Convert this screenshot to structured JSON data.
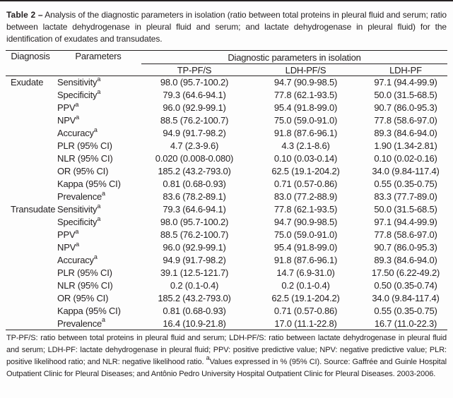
{
  "colors": {
    "text": "#231f20",
    "rule": "#262223",
    "background": "#fdfdfd"
  },
  "caption": {
    "label": "Table 2 –",
    "text": "Analysis of the diagnostic parameters in isolation (ratio between total proteins in pleural fluid and serum; ratio between lactate dehydrogenase in pleural fluid and serum; and lactate dehydrogenase in pleural fluid) for the identification of exudates and transudates."
  },
  "table": {
    "header": {
      "diagnosis": "Diagnosis",
      "parameters": "Parameters",
      "group": "Diagnostic parameters in isolation",
      "columns": [
        "TP-PF/S",
        "LDH-PF/S",
        "LDH-PF"
      ]
    },
    "sections": [
      {
        "diagnosis": "Exudate",
        "rows": [
          {
            "parameter": "Sensitivity",
            "note": "a",
            "values": [
              "98.0 (95.7-100.2)",
              "94.7 (90.9-98.5)",
              "97.1 (94.4-99.9)"
            ]
          },
          {
            "parameter": "Specificity",
            "note": "a",
            "values": [
              "79.3 (64.6-94.1)",
              "77.8 (62.1-93.5)",
              "50.0 (31.5-68.5)"
            ]
          },
          {
            "parameter": "PPV",
            "note": "a",
            "values": [
              "96.0 (92.9-99.1)",
              "95.4 (91.8-99.0)",
              "90.7 (86.0-95.3)"
            ]
          },
          {
            "parameter": "NPV",
            "note": "a",
            "values": [
              "88.5 (76.2-100.7)",
              "75.0 (59.0-91.0)",
              "77.8 (58.6-97.0)"
            ]
          },
          {
            "parameter": "Accuracy",
            "note": "a",
            "values": [
              "94.9 (91.7-98.2)",
              "91.8 (87.6-96.1)",
              "89.3 (84.6-94.0)"
            ]
          },
          {
            "parameter": "PLR (95% CI)",
            "note": "",
            "values": [
              "4.7 (2.3-9.6)",
              "4.3 (2.1-8.6)",
              "1.90 (1.34-2.81)"
            ]
          },
          {
            "parameter": "NLR (95% CI)",
            "note": "",
            "values": [
              "0.020 (0.008-0.080)",
              "0.10 (0.03-0.14)",
              "0.10 (0.02-0.16)"
            ]
          },
          {
            "parameter": "OR (95% CI)",
            "note": "",
            "values": [
              "185.2 (43.2-793.0)",
              "62.5 (19.1-204.2)",
              "34.0 (9.84-117.4)"
            ]
          },
          {
            "parameter": "Kappa (95% CI)",
            "note": "",
            "values": [
              "0.81 (0.68-0.93)",
              "0.71 (0.57-0.86)",
              "0.55 (0.35-0.75)"
            ]
          },
          {
            "parameter": "Prevalence",
            "note": "a",
            "values": [
              "83.6 (78.2-89.1)",
              "83.0 (77.2-88.9)",
              "83.3 (77.7-89.0)"
            ]
          }
        ]
      },
      {
        "diagnosis": "Transudate",
        "rows": [
          {
            "parameter": "Sensitivity",
            "note": "a",
            "values": [
              "79.3 (64.6-94.1)",
              "77.8 (62.1-93.5)",
              "50.0 (31.5-68.5)"
            ]
          },
          {
            "parameter": "Specificity",
            "note": "a",
            "values": [
              "98.0 (95.7-100.2)",
              "94.7 (90.9-98.5)",
              "97.1 (94.4-99.9)"
            ]
          },
          {
            "parameter": "PPV",
            "note": "a",
            "values": [
              "88.5 (76.2-100.7)",
              "75.0 (59.0-91.0)",
              "77.8 (58.6-97.0)"
            ]
          },
          {
            "parameter": "NPV",
            "note": "a",
            "values": [
              "96.0 (92.9-99.1)",
              "95.4 (91.8-99.0)",
              "90.7 (86.0-95.3)"
            ]
          },
          {
            "parameter": "Accuracy",
            "note": "a",
            "values": [
              "94.9 (91.7-98.2)",
              "91.8 (87.6-96.1)",
              "89.3 (84.6-94.0)"
            ]
          },
          {
            "parameter": "PLR (95% CI)",
            "note": "",
            "values": [
              "39.1 (12.5-121.7)",
              "14.7 (6.9-31.0)",
              "17.50 (6.22-49.2)"
            ]
          },
          {
            "parameter": "NLR (95% CI)",
            "note": "",
            "values": [
              "0.2 (0.1-0.4)",
              "0.2 (0.1-0.4)",
              "0.50 (0.35-0.74)"
            ]
          },
          {
            "parameter": "OR (95% CI)",
            "note": "",
            "values": [
              "185.2 (43.2-793.0)",
              "62.5 (19.1-204.2)",
              "34.0 (9.84-117.4)"
            ]
          },
          {
            "parameter": "Kappa (95% CI)",
            "note": "",
            "values": [
              "0.81 (0.68-0.93)",
              "0.71 (0.57-0.86)",
              "0.55 (0.35-0.75)"
            ]
          },
          {
            "parameter": "Prevalence",
            "note": "a",
            "values": [
              "16.4 (10.9-21.8)",
              "17.0 (11.1-22.8)",
              "16.7 (11.0-22.3)"
            ]
          }
        ]
      }
    ]
  },
  "footnote": {
    "part1": "TP-PF/S: ratio between total proteins in pleural fluid and serum; LDH-PF/S: ratio between lactate dehydrogenase in pleural fluid and serum; LDH-PF: lactate dehydrogenase in pleural fluid; PPV: positive predictive value; NPV: negative predictive value; PLR: positive likelihood ratio; and NLR: negative likelihood ratio. ",
    "note_marker": "a",
    "part2": "Values expressed in % (95% CI). Source: Gaffrée and Guinle Hospital Outpatient Clinic for Pleural Diseases; and Antônio Pedro University Hospital Outpatient Clinic for Pleural Diseases. 2003-2006."
  }
}
